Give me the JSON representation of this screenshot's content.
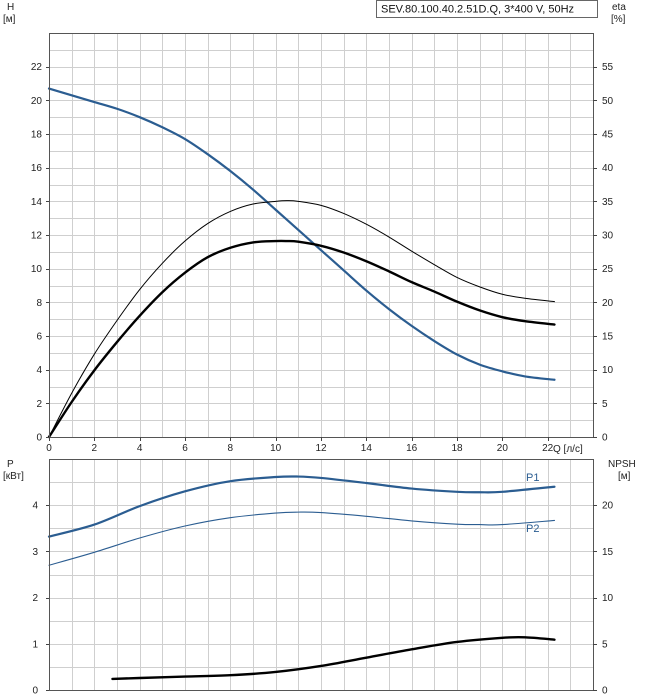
{
  "chart_data": [
    {
      "type": "line",
      "title": "SEV.80.100.40.2.51D.Q, 3*400 V, 50Hz",
      "xlabel": "Q [л/с]",
      "ylabel_left_name": "H",
      "ylabel_left_unit": "[м]",
      "ylabel_right_name": "eta",
      "ylabel_right_unit": "[%]",
      "xlim": [
        0,
        24
      ],
      "ylim_left": [
        0,
        24
      ],
      "ylim_right": [
        0,
        60
      ],
      "xticks": [
        0,
        2,
        4,
        6,
        8,
        10,
        12,
        14,
        16,
        18,
        20,
        22
      ],
      "yticks_left": [
        0,
        2,
        4,
        6,
        8,
        10,
        12,
        14,
        16,
        18,
        20,
        22
      ],
      "yticks_right": [
        0,
        5,
        10,
        15,
        20,
        25,
        30,
        35,
        40,
        45,
        50,
        55
      ],
      "grid": true,
      "series": [
        {
          "axis": "left",
          "color": "#2b5d91",
          "width": 2.2,
          "x": [
            0,
            1,
            2,
            3,
            4,
            5,
            6,
            7,
            8,
            9,
            10,
            11,
            12,
            13,
            14,
            15,
            16,
            17,
            18,
            19,
            20,
            21,
            22.3
          ],
          "y": [
            20.7,
            20.3,
            19.9,
            19.5,
            19.0,
            18.4,
            17.7,
            16.8,
            15.8,
            14.7,
            13.5,
            12.3,
            11.1,
            9.9,
            8.7,
            7.6,
            6.6,
            5.7,
            4.9,
            4.3,
            3.9,
            3.6,
            3.4
          ]
        },
        {
          "axis": "right",
          "color": "#000000",
          "width": 1.0,
          "x": [
            0,
            1,
            2,
            3,
            4,
            5,
            6,
            7,
            8,
            9,
            10,
            10.5,
            11,
            12,
            13,
            14,
            15,
            16,
            17,
            18,
            19,
            20,
            21,
            22.3
          ],
          "y": [
            0,
            6.5,
            12.3,
            17.3,
            21.9,
            25.8,
            29.1,
            31.7,
            33.5,
            34.6,
            35.0,
            35.1,
            35.0,
            34.4,
            33.2,
            31.6,
            29.7,
            27.6,
            25.6,
            23.7,
            22.3,
            21.2,
            20.6,
            20.1
          ]
        },
        {
          "axis": "right",
          "color": "#000000",
          "width": 2.4,
          "x": [
            0,
            1,
            2,
            3,
            4,
            5,
            6,
            7,
            8,
            9,
            10,
            10.5,
            11,
            12,
            13,
            14,
            15,
            16,
            17,
            18,
            19,
            20,
            21,
            22.3
          ],
          "y": [
            0,
            5.2,
            9.9,
            14.1,
            18.0,
            21.5,
            24.4,
            26.7,
            28.1,
            28.9,
            29.1,
            29.1,
            29.0,
            28.4,
            27.4,
            26.1,
            24.6,
            23.0,
            21.6,
            20.1,
            18.8,
            17.8,
            17.2,
            16.7
          ]
        }
      ]
    },
    {
      "type": "line",
      "ylabel_left_name": "P",
      "ylabel_left_unit": "[кВт]",
      "ylabel_right_name": "NPSH",
      "ylabel_right_unit": "[м]",
      "xlim": [
        0,
        24
      ],
      "ylim_left": [
        0,
        5
      ],
      "ylim_right": [
        0,
        25
      ],
      "yticks_left": [
        0,
        1,
        2,
        3,
        4
      ],
      "yticks_right": [
        0,
        5,
        10,
        15,
        20
      ],
      "grid": true,
      "series": [
        {
          "name": "P1",
          "axis": "left",
          "color": "#2b5d91",
          "width": 2.2,
          "x": [
            0,
            2,
            4,
            6,
            8,
            10,
            11,
            12,
            14,
            16,
            18,
            19,
            20,
            22.3
          ],
          "y": [
            3.32,
            3.58,
            3.98,
            4.3,
            4.52,
            4.61,
            4.62,
            4.59,
            4.48,
            4.36,
            4.29,
            4.28,
            4.29,
            4.4
          ]
        },
        {
          "name": "P2",
          "axis": "left",
          "color": "#2b5d91",
          "width": 1.1,
          "x": [
            0,
            2,
            4,
            6,
            8,
            10,
            11,
            12,
            14,
            16,
            18,
            19,
            20,
            22.3
          ],
          "y": [
            2.7,
            2.98,
            3.29,
            3.55,
            3.73,
            3.83,
            3.85,
            3.84,
            3.76,
            3.66,
            3.59,
            3.58,
            3.58,
            3.67
          ]
        },
        {
          "axis": "right",
          "color": "#000000",
          "width": 2.4,
          "x": [
            2.8,
            4,
            6,
            8,
            10,
            12,
            14,
            16,
            18,
            20,
            21,
            22.3
          ],
          "y": [
            1.2,
            1.3,
            1.45,
            1.6,
            1.95,
            2.6,
            3.5,
            4.4,
            5.2,
            5.65,
            5.7,
            5.45
          ]
        }
      ]
    }
  ]
}
